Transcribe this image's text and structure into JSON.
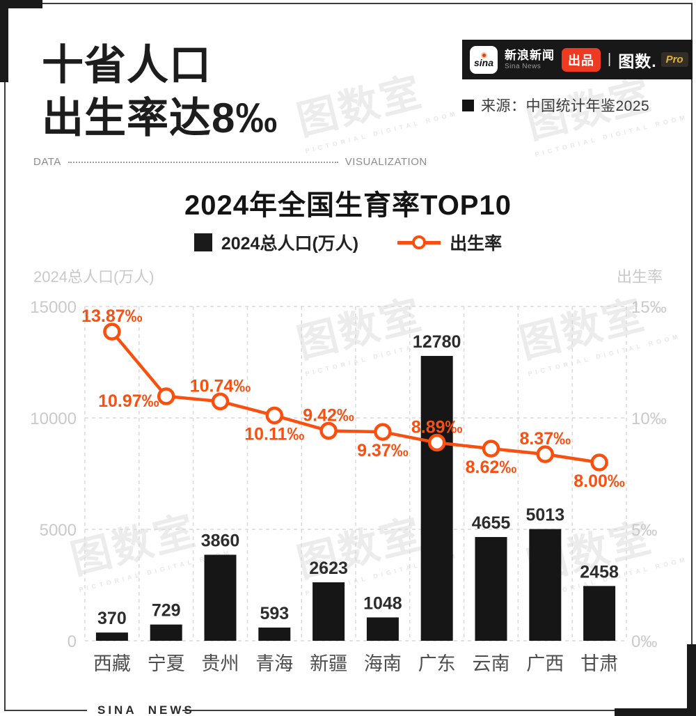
{
  "page": {
    "background": "#ffffff",
    "accent_orange": "#fa4f0e",
    "badge_red": "#ee3a21",
    "pro_gold": "#e3b23c",
    "bar_black": "#161616"
  },
  "header": {
    "title_line1": "十省人口",
    "title_line2": "出生率达8‰",
    "brand": {
      "sina_logo_text": "sina",
      "name_cn": "新浪新闻",
      "name_en": "Sina News",
      "badge": "出品",
      "divider": "|",
      "tushu_logo": "图数.",
      "pro": "Pro"
    },
    "source": "来源：中国统计年鉴2025"
  },
  "divider": {
    "left": "DATA",
    "right": "VISUALIZATION"
  },
  "chart_header": {
    "title": "2024年全国生育率TOP10",
    "legend_bar": "2024总人口(万人)",
    "legend_line": "出生率"
  },
  "chart_data": {
    "type": "bar",
    "subtype": "bar+line combo, dual axis",
    "title": "2024年全国生育率TOP10",
    "categories": [
      "西藏",
      "宁夏",
      "贵州",
      "青海",
      "新疆",
      "海南",
      "广东",
      "云南",
      "广西",
      "甘肃"
    ],
    "series": [
      {
        "name": "2024总人口(万人)",
        "type": "bar",
        "axis": "left",
        "color": "#161616",
        "values": [
          370,
          729,
          3860,
          593,
          2623,
          1048,
          12780,
          4655,
          5013,
          2458
        ]
      },
      {
        "name": "出生率",
        "type": "line",
        "axis": "right",
        "color": "#fa4f0e",
        "unit": "‰",
        "values": [
          13.87,
          10.97,
          10.74,
          10.11,
          9.42,
          9.37,
          8.89,
          8.62,
          8.37,
          8.0
        ],
        "labels": [
          "13.87‰",
          "10.97‰",
          "10.74‰",
          "10.11‰",
          "9.42‰",
          "9.37‰",
          "8.89‰",
          "8.62‰",
          "8.37‰",
          "8.00‰"
        ],
        "label_pos": [
          "above",
          "left",
          "above",
          "below",
          "above",
          "below",
          "above",
          "below",
          "above",
          "below"
        ]
      }
    ],
    "left_axis": {
      "title": "2024总人口(万人)",
      "ticks": [
        "15000",
        "10000",
        "5000",
        "0"
      ],
      "min": 0,
      "max": 15000
    },
    "right_axis": {
      "title": "出生率",
      "ticks": [
        "15‰",
        "10‰",
        "5‰",
        "0‰"
      ],
      "min": 0,
      "max": 15
    },
    "grid": "dashed horizontal and vertical, light gray",
    "legend_position": "top center"
  },
  "footer": {
    "label": "SINA NEWS"
  },
  "watermark": {
    "text": "图数室",
    "subtext": "PICTORIAL DIGITAL ROOM"
  }
}
